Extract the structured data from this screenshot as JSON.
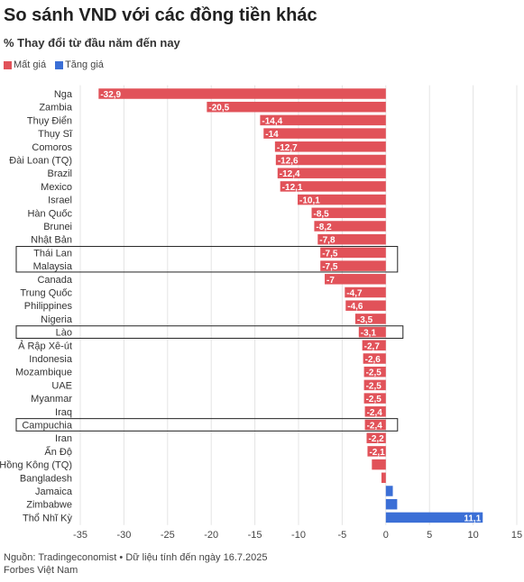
{
  "chart_data": {
    "type": "bar",
    "orientation": "horizontal",
    "title": "So sánh VND với các đồng tiền khác",
    "subtitle": "% Thay đổi từ đầu năm đến nay",
    "legend": [
      {
        "name": "Mất giá",
        "color": "#e15259"
      },
      {
        "name": "Tăng giá",
        "color": "#3b6fd6"
      }
    ],
    "categories": [
      "Nga",
      "Zambia",
      "Thụy Điển",
      "Thụy Sĩ",
      "Comoros",
      "Đài Loan (TQ)",
      "Brazil",
      "Mexico",
      "Israel",
      "Hàn Quốc",
      "Brunei",
      "Nhật Bản",
      "Thái Lan",
      "Malaysia",
      "Canada",
      "Trung Quốc",
      "Philippines",
      "Nigeria",
      "Lào",
      "Ả Rập Xê-út",
      "Indonesia",
      "Mozambique",
      "UAE",
      "Myanmar",
      "Iraq",
      "Campuchia",
      "Iran",
      "Ấn Độ",
      "Hồng Kông (TQ)",
      "Bangladesh",
      "Jamaica",
      "Zimbabwe",
      "Thổ Nhĩ Kỳ"
    ],
    "values": [
      -32.9,
      -20.5,
      -14.4,
      -14,
      -12.7,
      -12.6,
      -12.4,
      -12.1,
      -10.1,
      -8.5,
      -8.2,
      -7.8,
      -7.5,
      -7.5,
      -7,
      -4.7,
      -4.6,
      -3.5,
      -3.1,
      -2.7,
      -2.6,
      -2.5,
      -2.5,
      -2.5,
      -2.4,
      -2.4,
      -2.2,
      -2.1,
      -1.6,
      -0.5,
      0.8,
      1.3,
      11.1
    ],
    "data_labels": [
      "-32,9",
      "-20,5",
      "-14,4",
      "-14",
      "-12,7",
      "-12,6",
      "-12,4",
      "-12,1",
      "-10,1",
      "-8,5",
      "-8,2",
      "-7,8",
      "-7,5",
      "-7,5",
      "-7",
      "-4,7",
      "-4,6",
      "-3,5",
      "-3,1",
      "-2,7",
      "-2,6",
      "-2,5",
      "-2,5",
      "-2,5",
      "-2,4",
      "-2,4",
      "-2,2",
      "-2,1",
      "",
      "",
      "",
      "",
      "11,1"
    ],
    "highlighted": [
      "Thái Lan",
      "Malaysia",
      "Lào",
      "Campuchia"
    ],
    "xlim": [
      -35,
      15
    ],
    "x_ticks": [
      -35,
      -30,
      -25,
      -20,
      -15,
      -10,
      -5,
      0,
      5,
      10,
      15
    ],
    "colors": {
      "negative": "#e15259",
      "positive": "#3b6fd6"
    }
  },
  "footer": {
    "source": "Nguồn: Tradingeconomist • Dữ liệu tính đến ngày 16.7.2025",
    "brand": "Forbes Việt Nam"
  }
}
